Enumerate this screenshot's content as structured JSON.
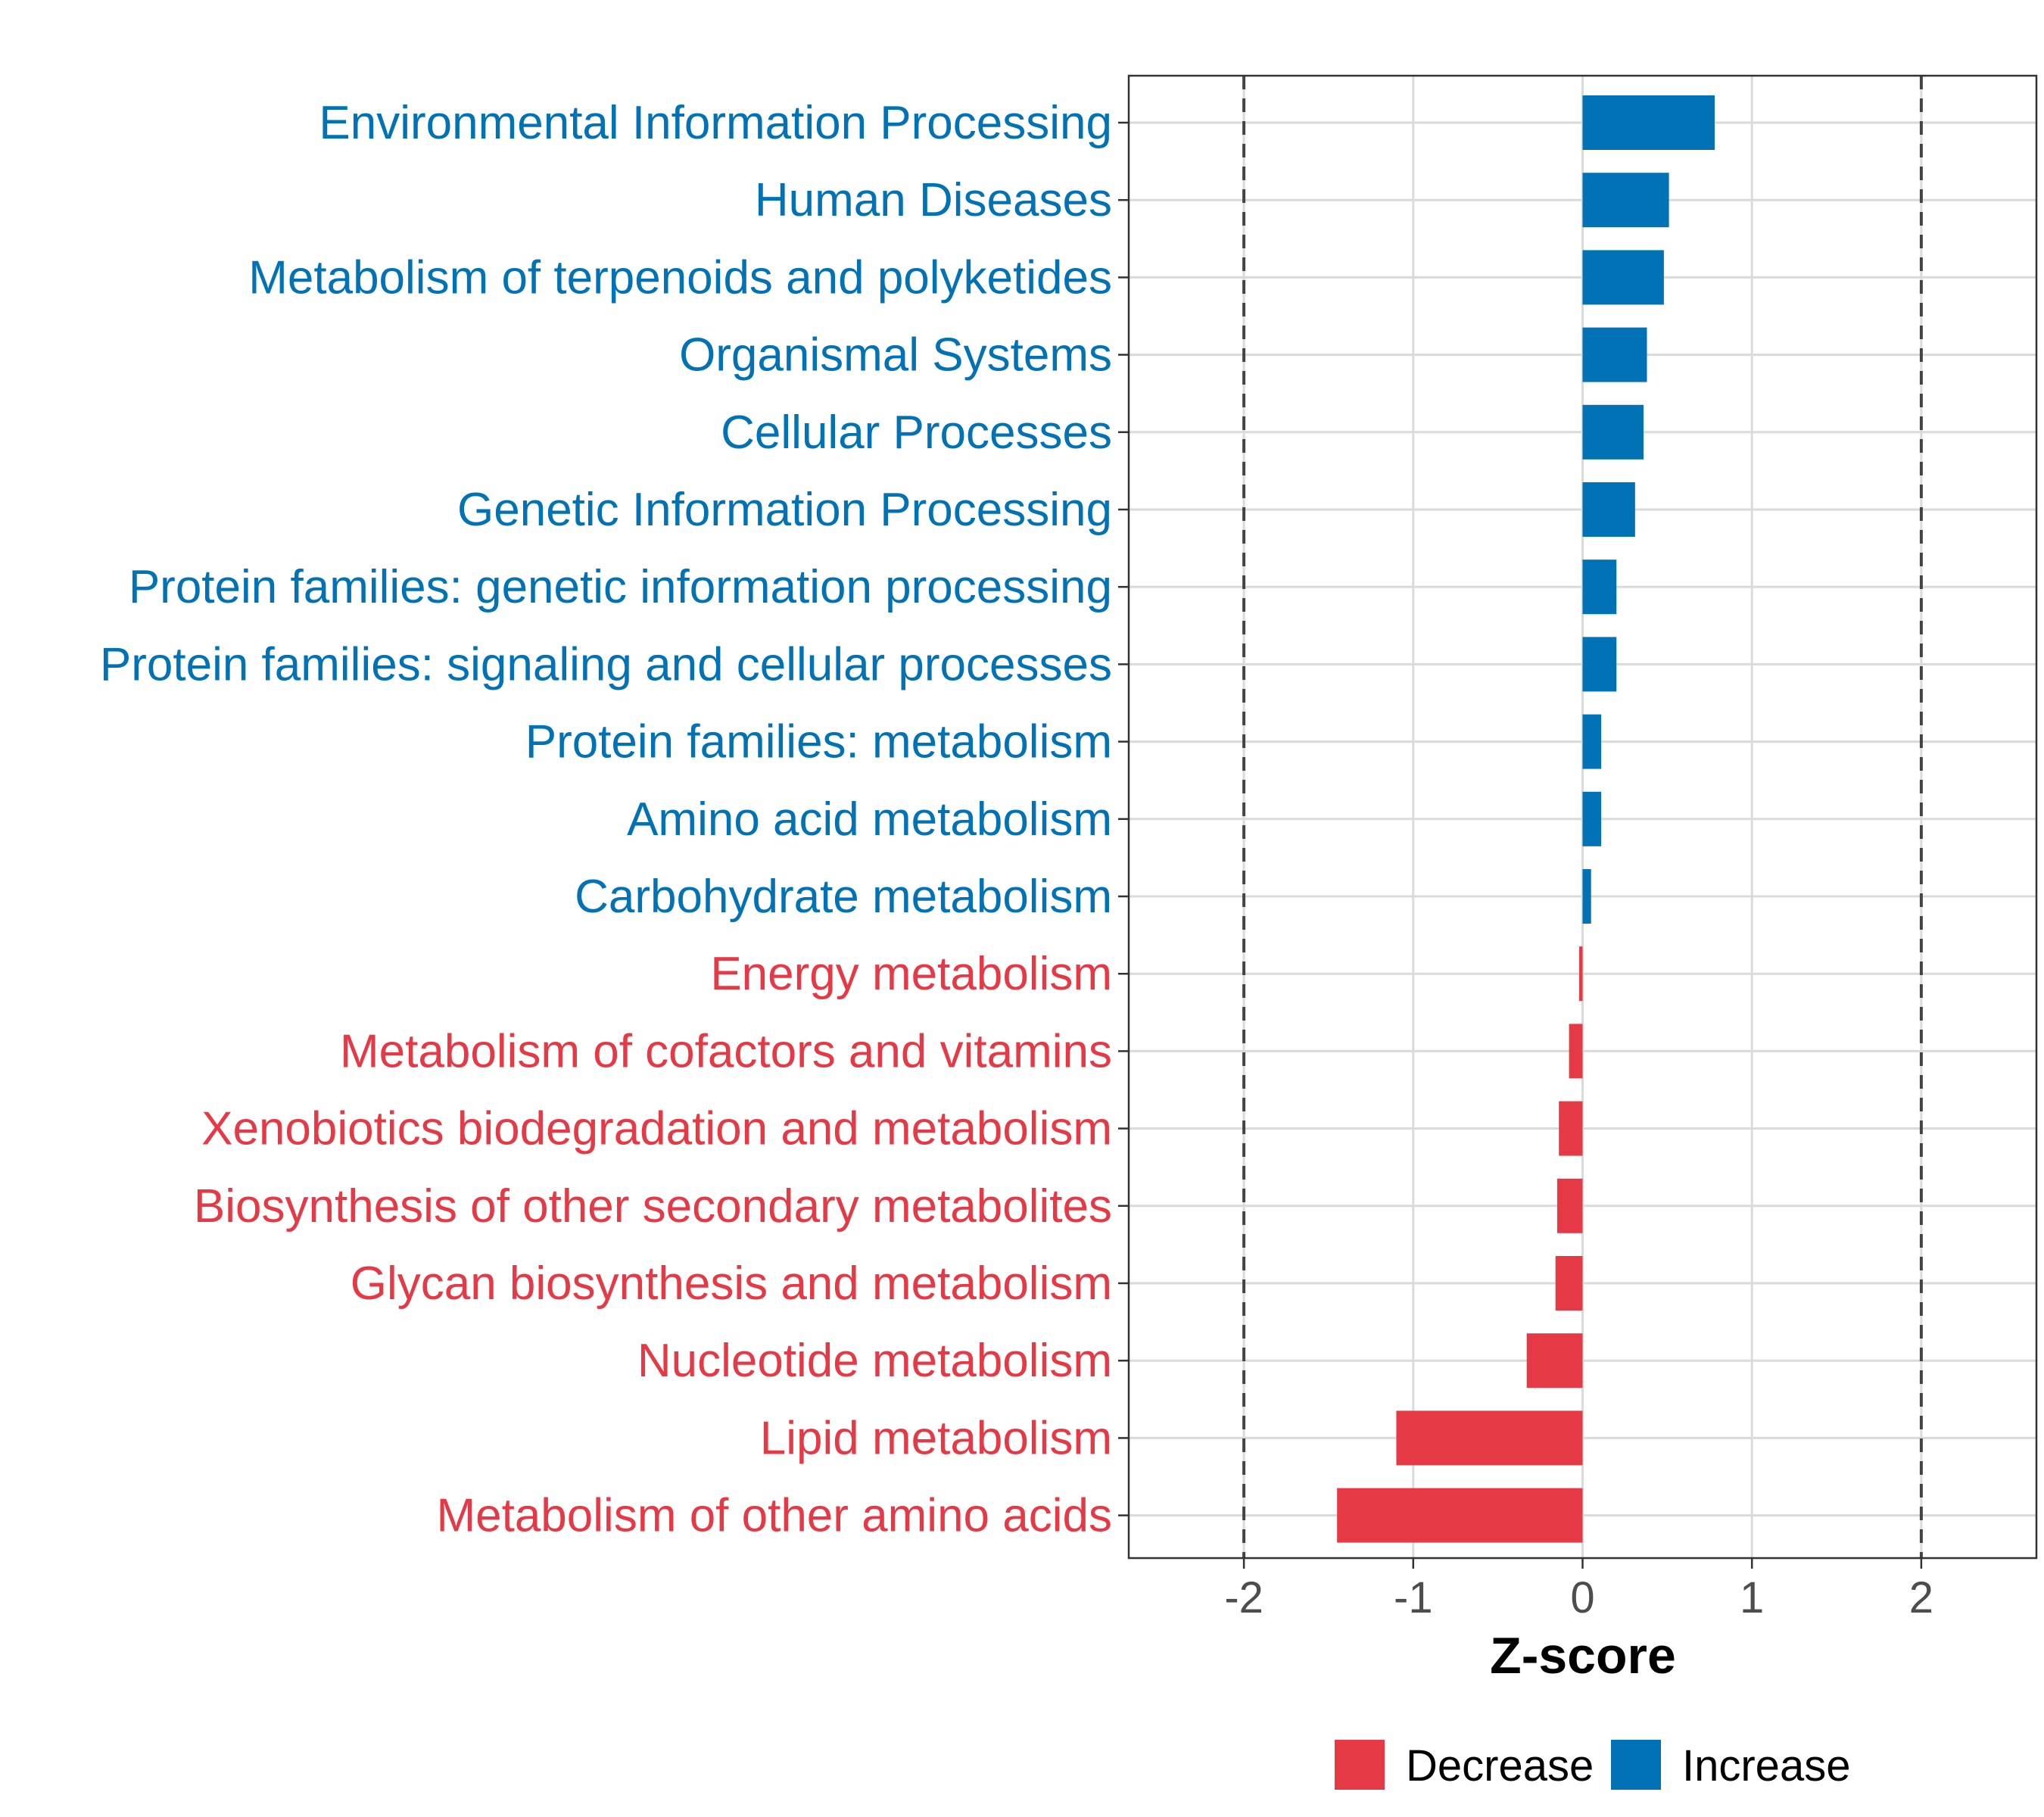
{
  "chart_data": {
    "type": "bar",
    "orientation": "horizontal",
    "xlabel": "Z-score",
    "xlim": [
      -2.68,
      2.68
    ],
    "x_ticks": [
      "-2",
      "-1",
      "0",
      "1",
      "2"
    ],
    "reference_lines": [
      -2,
      2
    ],
    "colors": {
      "Decrease": "#E63946",
      "Increase": "#0072B5"
    },
    "categories": [
      "Environmental Information Processing",
      "Human Diseases",
      "Metabolism of terpenoids and polyketides",
      "Organismal Systems",
      "Cellular Processes",
      "Genetic Information Processing",
      "Protein families: genetic information processing",
      "Protein families: signaling and cellular processes",
      "Protein families: metabolism",
      "Amino acid metabolism",
      "Carbohydrate metabolism",
      "Energy metabolism",
      "Metabolism of cofactors and vitamins",
      "Xenobiotics biodegradation and metabolism",
      "Biosynthesis of other secondary metabolites",
      "Glycan biosynthesis and metabolism",
      "Nucleotide metabolism",
      "Lipid metabolism",
      "Metabolism of other amino acids"
    ],
    "values": [
      0.78,
      0.51,
      0.48,
      0.38,
      0.36,
      0.31,
      0.2,
      0.2,
      0.11,
      0.11,
      0.05,
      -0.02,
      -0.08,
      -0.14,
      -0.15,
      -0.16,
      -0.33,
      -1.1,
      -1.45
    ],
    "groups": [
      "Increase",
      "Increase",
      "Increase",
      "Increase",
      "Increase",
      "Increase",
      "Increase",
      "Increase",
      "Increase",
      "Increase",
      "Increase",
      "Decrease",
      "Decrease",
      "Decrease",
      "Decrease",
      "Decrease",
      "Decrease",
      "Decrease",
      "Decrease"
    ],
    "legend": {
      "position": "bottom",
      "entries": [
        "Decrease",
        "Increase"
      ]
    }
  }
}
